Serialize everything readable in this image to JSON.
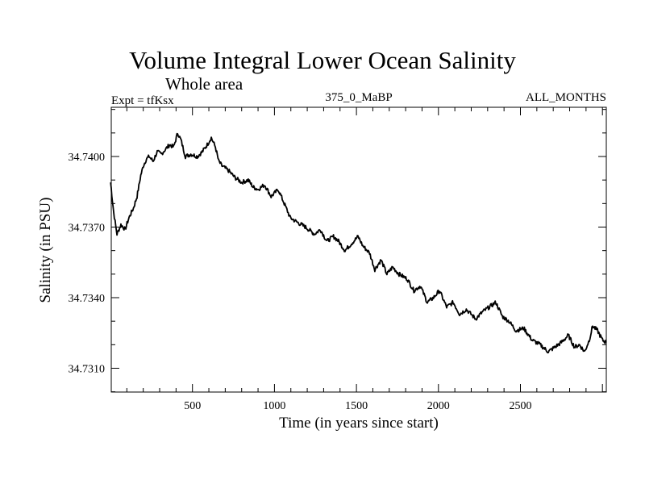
{
  "chart_data": {
    "type": "line",
    "title": "Volume Integral Lower Ocean Salinity",
    "subtitle": "Whole area",
    "info_left": "Expt = tfKsx",
    "info_center": "375_0_MaBP",
    "info_right": "ALL_MONTHS",
    "xlabel": "Time (in years since start)",
    "ylabel": "Salinity (in PSU)",
    "xlim": [
      1,
      3023
    ],
    "ylim": [
      34.73,
      34.741
    ],
    "x_major_ticks": [
      500,
      1000,
      1500,
      2000,
      2500
    ],
    "x_major_tick_labels": [
      "500",
      "1000",
      "1500",
      "2000",
      "2500"
    ],
    "x_minor_step": 100,
    "y_major_ticks": [
      34.731,
      34.734,
      34.737,
      34.74
    ],
    "y_major_tick_labels": [
      "34.7310",
      "34.7340",
      "34.7370",
      "34.7400"
    ],
    "y_minor_step": 0.001,
    "grid": false,
    "line_color": "#000000",
    "series": [
      {
        "name": "Salinity",
        "x": [
          1,
          20,
          40,
          64,
          90,
          113,
          140,
          162,
          185,
          200,
          220,
          236,
          260,
          285,
          310,
          335,
          360,
          385,
          410,
          430,
          457,
          490,
          530,
          560,
          590,
          615,
          640,
          660,
          680,
          720,
          760,
          800,
          840,
          870,
          900,
          940,
          980,
          1023,
          1060,
          1096,
          1140,
          1190,
          1244,
          1280,
          1320,
          1360,
          1391,
          1430,
          1470,
          1510,
          1539,
          1580,
          1612,
          1650,
          1686,
          1720,
          1760,
          1809,
          1850,
          1890,
          1932,
          1970,
          2006,
          2050,
          2090,
          2129,
          2170,
          2227,
          2270,
          2310,
          2350,
          2390,
          2430,
          2473,
          2520,
          2571,
          2620,
          2670,
          2710,
          2750,
          2792,
          2830,
          2860,
          2891,
          2920,
          2940,
          2970,
          3000,
          3023
        ],
        "values": [
          34.7389,
          34.7376,
          34.7367,
          34.7371,
          34.7369,
          34.7374,
          34.7378,
          34.7383,
          34.7392,
          34.7396,
          34.7399,
          34.74,
          34.7398,
          34.7402,
          34.7401,
          34.7403,
          34.7405,
          34.7404,
          34.741,
          34.7407,
          34.74,
          34.7401,
          34.74,
          34.7402,
          34.7405,
          34.7408,
          34.7404,
          34.7398,
          34.7396,
          34.7394,
          34.7391,
          34.7389,
          34.739,
          34.7387,
          34.7386,
          34.7388,
          34.7383,
          34.7386,
          34.738,
          34.7374,
          34.7372,
          34.737,
          34.7367,
          34.7369,
          34.7364,
          34.7366,
          34.7364,
          34.736,
          34.7363,
          34.7366,
          34.7362,
          34.7359,
          34.7352,
          34.7356,
          34.735,
          34.7353,
          34.735,
          34.7348,
          34.7343,
          34.7345,
          34.7338,
          34.734,
          34.7343,
          34.7336,
          34.7338,
          34.7333,
          34.7335,
          34.7331,
          34.7334,
          34.7336,
          34.7338,
          34.7332,
          34.733,
          34.7326,
          34.7327,
          34.7322,
          34.732,
          34.7317,
          34.7319,
          34.7321,
          34.7324,
          34.7319,
          34.732,
          34.7317,
          34.7322,
          34.7328,
          34.7326,
          34.7322,
          34.7321
        ]
      }
    ]
  }
}
